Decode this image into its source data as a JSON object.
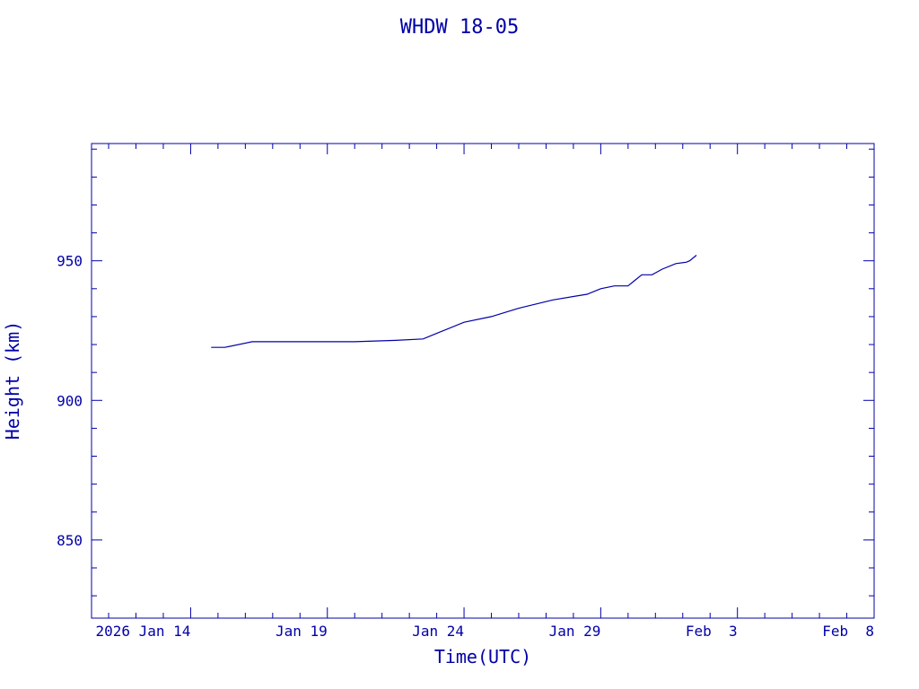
{
  "chart_data": {
    "type": "line",
    "title": "WHDW 18-05",
    "xlabel": "Time(UTC)",
    "ylabel": "Height (km)",
    "x_axis": {
      "min": "2026-01-10T09:00",
      "max": "2026-02-08T00:00",
      "major_ticks": [
        {
          "date": "2026-01-14",
          "label": "2026 Jan 14"
        },
        {
          "date": "2026-01-19",
          "label": "Jan 19"
        },
        {
          "date": "2026-01-24",
          "label": "Jan 24"
        },
        {
          "date": "2026-01-29",
          "label": "Jan 29"
        },
        {
          "date": "2026-02-03",
          "label": "Feb  3"
        },
        {
          "date": "2026-02-08",
          "label": "Feb  8"
        }
      ]
    },
    "y_axis": {
      "min": 822,
      "max": 992,
      "major_ticks": [
        850,
        900,
        950
      ],
      "minor_step": 10
    },
    "grid": false,
    "color": "#0000a8",
    "series": [
      {
        "points": [
          {
            "x": "2026-01-14T18:00",
            "y": 919
          },
          {
            "x": "2026-01-15T06:00",
            "y": 919
          },
          {
            "x": "2026-01-16T06:00",
            "y": 921
          },
          {
            "x": "2026-01-17T12:00",
            "y": 921
          },
          {
            "x": "2026-01-20T00:00",
            "y": 921
          },
          {
            "x": "2026-01-21T12:00",
            "y": 921.5
          },
          {
            "x": "2026-01-22T12:00",
            "y": 922
          },
          {
            "x": "2026-01-23T00:00",
            "y": 924
          },
          {
            "x": "2026-01-24T00:00",
            "y": 928
          },
          {
            "x": "2026-01-25T00:00",
            "y": 930
          },
          {
            "x": "2026-01-26T00:00",
            "y": 933
          },
          {
            "x": "2026-01-27T06:00",
            "y": 936
          },
          {
            "x": "2026-01-28T12:00",
            "y": 938
          },
          {
            "x": "2026-01-29T00:00",
            "y": 940
          },
          {
            "x": "2026-01-29T12:00",
            "y": 941
          },
          {
            "x": "2026-01-30T00:00",
            "y": 941
          },
          {
            "x": "2026-01-30T06:00",
            "y": 943
          },
          {
            "x": "2026-01-30T12:00",
            "y": 945
          },
          {
            "x": "2026-01-30T21:00",
            "y": 945
          },
          {
            "x": "2026-01-31T06:00",
            "y": 947
          },
          {
            "x": "2026-01-31T18:00",
            "y": 949
          },
          {
            "x": "2026-02-01T03:00",
            "y": 949.5
          },
          {
            "x": "2026-02-01T06:00",
            "y": 950
          },
          {
            "x": "2026-02-01T12:00",
            "y": 952
          }
        ]
      }
    ]
  }
}
